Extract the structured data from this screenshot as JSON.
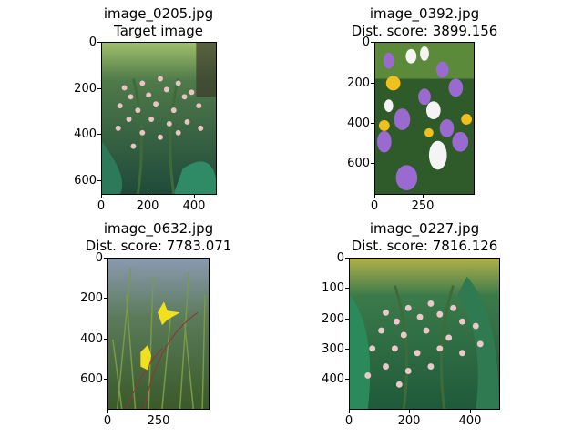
{
  "panels": [
    {
      "filename": "image_0205.jpg",
      "subtitle": "Target image",
      "image_icon": "lily-of-the-valley-photo",
      "yticks": [
        "0",
        "200",
        "400",
        "600"
      ],
      "xticks": [
        "0",
        "200",
        "400"
      ]
    },
    {
      "filename": "image_0392.jpg",
      "subtitle": "Dist. score: 3899.156",
      "image_icon": "crocus-field-photo",
      "yticks": [
        "0",
        "200",
        "400",
        "600"
      ],
      "xticks": [
        "0",
        "250"
      ]
    },
    {
      "filename": "image_0632.jpg",
      "subtitle": "Dist. score: 7783.071",
      "image_icon": "yellow-wildflower-grass-photo",
      "yticks": [
        "0",
        "200",
        "400",
        "600"
      ],
      "xticks": [
        "0",
        "250"
      ]
    },
    {
      "filename": "image_0227.jpg",
      "subtitle": "Dist. score: 7816.126",
      "image_icon": "lily-of-the-valley-photo",
      "yticks": [
        "0",
        "100",
        "200",
        "300",
        "400"
      ],
      "xticks": [
        "0",
        "200",
        "400"
      ]
    }
  ]
}
